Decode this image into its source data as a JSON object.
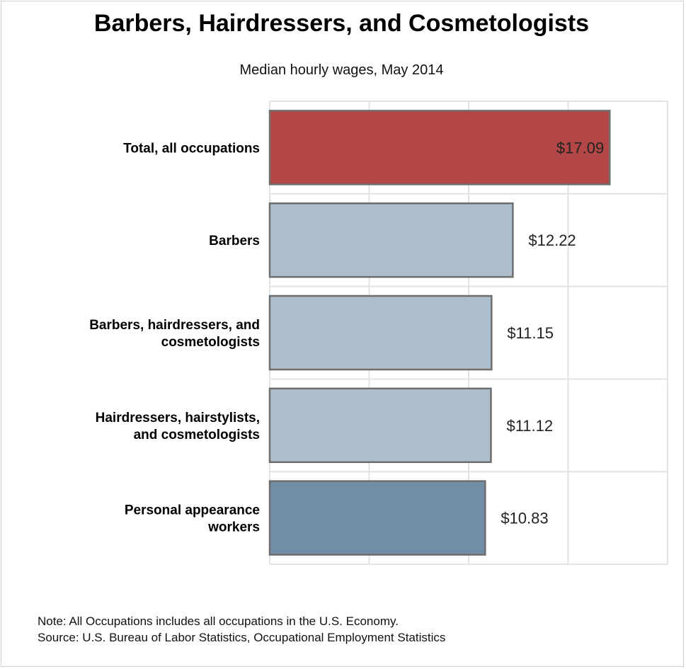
{
  "title": "Barbers, Hairdressers, and Cosmetologists",
  "subtitle": "Median hourly wages, May 2014",
  "notes": {
    "note": "Note: All Occupations includes all occupations in the U.S. Economy.",
    "source": "Source: U.S. Bureau of Labor Statistics, Occupational Employment Statistics"
  },
  "colors": {
    "total": "#b34747",
    "light": "#adbfcc",
    "dark": "#728ea6",
    "bar_stroke": "#6e6e6e",
    "grid": "#e3e3e3"
  },
  "chart_data": {
    "type": "bar",
    "orientation": "horizontal",
    "title": "Barbers, Hairdressers, and Cosmetologists",
    "subtitle": "Median hourly wages, May 2014",
    "xlim": [
      0,
      20
    ],
    "grid": true,
    "categories": [
      [
        "Total, all occupations"
      ],
      [
        "Barbers"
      ],
      [
        "Barbers, hairdressers, and",
        "cosmetologists"
      ],
      [
        "Hairdressers, hairstylists,",
        "and cosmetologists"
      ],
      [
        "Personal appearance",
        "workers"
      ]
    ],
    "values": [
      17.09,
      12.22,
      11.15,
      11.12,
      10.83
    ],
    "value_labels": [
      "$17.09",
      "$12.22",
      "$11.15",
      "$11.12",
      "$10.83"
    ],
    "bar_colors": [
      "total",
      "light",
      "light",
      "light",
      "dark"
    ]
  }
}
